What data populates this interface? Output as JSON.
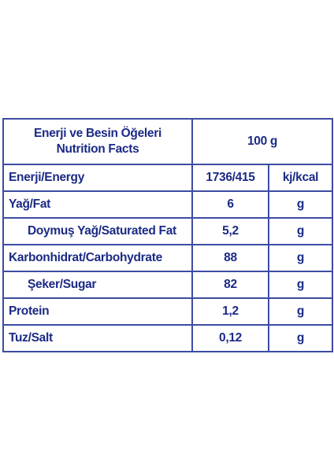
{
  "header": {
    "title": [
      "Enerji ve Besin Öğeleri",
      "Nutrition Facts"
    ],
    "amount": "100 g"
  },
  "rows": [
    [
      "Enerji/Energy",
      "1736/415",
      "kj/kcal"
    ],
    [
      "Yağ/Fat",
      "6",
      "g"
    ],
    [
      "Doymuş Yağ/Saturated Fat",
      "5,2",
      "g"
    ],
    [
      "Karbonhidrat/Carbohydrate",
      "88",
      "g"
    ],
    [
      "Şeker/Sugar",
      "82",
      "g"
    ],
    [
      "Protein",
      "1,2",
      "g"
    ],
    [
      "Tuz/Salt",
      "0,12",
      "g"
    ]
  ]
}
